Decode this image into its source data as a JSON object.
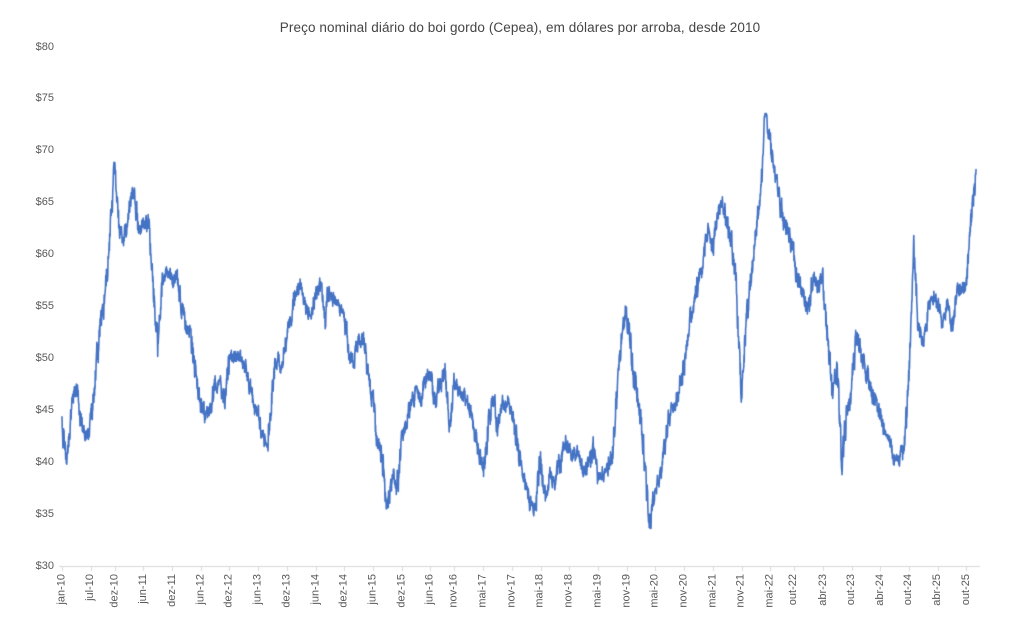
{
  "chart_data": {
    "type": "line",
    "title": "Preço nominal diário do boi gordo (Cepea), em dólares por arroba, desde 2010",
    "series_name": "Preço nominal diário do boi gordo (Cepea)",
    "unit": "dólares por arroba",
    "currency_prefix": "$",
    "ylim": [
      30,
      80
    ],
    "y_tick_step": 5,
    "grid": false,
    "legend": false,
    "line_color": "#4472C4",
    "axis_color": "#D9D9D9",
    "tick_label_color": "#595959",
    "title_color": "#454545",
    "background_color": "#FFFFFF",
    "x_start": "2010-01",
    "x_interval": "monthly",
    "x_tick_labels": [
      "jan-10",
      "jul-10",
      "dez-10",
      "jun-11",
      "dez-11",
      "jun-12",
      "dez-12",
      "jun-13",
      "dez-13",
      "jun-14",
      "dez-14",
      "jun-15",
      "dez-15",
      "jun-16",
      "nov-16",
      "mai-17",
      "nov-17",
      "mai-18",
      "nov-18",
      "mai-19",
      "nov-19",
      "mai-20",
      "nov-20",
      "mai-21",
      "nov-21",
      "mai-22",
      "out-22",
      "abr-23",
      "out-23",
      "abr-24",
      "out-24",
      "abr-25",
      "out-25"
    ],
    "x_tick_month_index": [
      0,
      6,
      11,
      17,
      23,
      29,
      35,
      41,
      47,
      53,
      59,
      65,
      71,
      77,
      82,
      88,
      94,
      100,
      106,
      112,
      118,
      124,
      130,
      136,
      142,
      148,
      153,
      159,
      165,
      171,
      177,
      183,
      189
    ],
    "values": [
      43.5,
      40.2,
      45.0,
      47.3,
      44.0,
      42.3,
      44.0,
      48.0,
      53.0,
      55.8,
      62.0,
      68.3,
      62.5,
      61.5,
      64.5,
      66.2,
      62.3,
      63.0,
      62.5,
      57.5,
      51.5,
      57.5,
      58.3,
      57.5,
      57.8,
      55.0,
      53.0,
      52.3,
      48.0,
      45.8,
      44.2,
      45.0,
      47.7,
      47.3,
      46.0,
      50.0,
      49.7,
      50.2,
      49.5,
      48.0,
      45.7,
      44.6,
      42.5,
      41.4,
      47.5,
      50.5,
      49.3,
      52.5,
      54.5,
      56.8,
      57.0,
      54.8,
      54.3,
      56.0,
      57.3,
      53.6,
      57.0,
      55.5,
      55.0,
      54.5,
      50.4,
      49.8,
      51.5,
      51.8,
      48.2,
      45.6,
      41.8,
      39.8,
      35.0,
      39.5,
      37.3,
      42.0,
      44.0,
      45.5,
      47.0,
      46.0,
      48.3,
      48.5,
      45.6,
      47.5,
      48.7,
      43.4,
      47.4,
      46.8,
      46.5,
      45.3,
      43.5,
      41.5,
      38.7,
      43.5,
      46.5,
      43.5,
      45.8,
      45.5,
      44.8,
      42.4,
      39.4,
      37.5,
      36.0,
      35.5,
      40.2,
      36.4,
      38.8,
      37.7,
      39.8,
      41.9,
      41.2,
      40.8,
      40.5,
      38.9,
      39.6,
      41.2,
      38.7,
      38.9,
      39.5,
      40.7,
      47.0,
      52.5,
      55.0,
      50.4,
      46.7,
      43.8,
      38.4,
      33.5,
      37.5,
      39.0,
      41.5,
      44.5,
      45.5,
      47.0,
      49.5,
      53.0,
      55.3,
      57.5,
      59.5,
      62.0,
      60.5,
      63.5,
      65.3,
      63.0,
      61.0,
      56.0,
      46.2,
      53.5,
      58.0,
      62.0,
      67.0,
      73.4,
      71.0,
      67.5,
      65.0,
      63.0,
      62.0,
      59.3,
      57.1,
      56.0,
      54.5,
      58.0,
      56.8,
      57.8,
      52.0,
      46.5,
      48.8,
      40.1,
      44.6,
      47.2,
      52.3,
      50.4,
      48.8,
      47.4,
      45.9,
      44.3,
      42.7,
      41.8,
      40.5,
      40.3,
      41.5,
      48.0,
      60.4,
      53.0,
      51.7,
      54.5,
      56.1,
      55.1,
      53.8,
      55.0,
      53.0,
      56.5,
      56.8,
      57.4,
      63.0,
      68.2
    ]
  }
}
